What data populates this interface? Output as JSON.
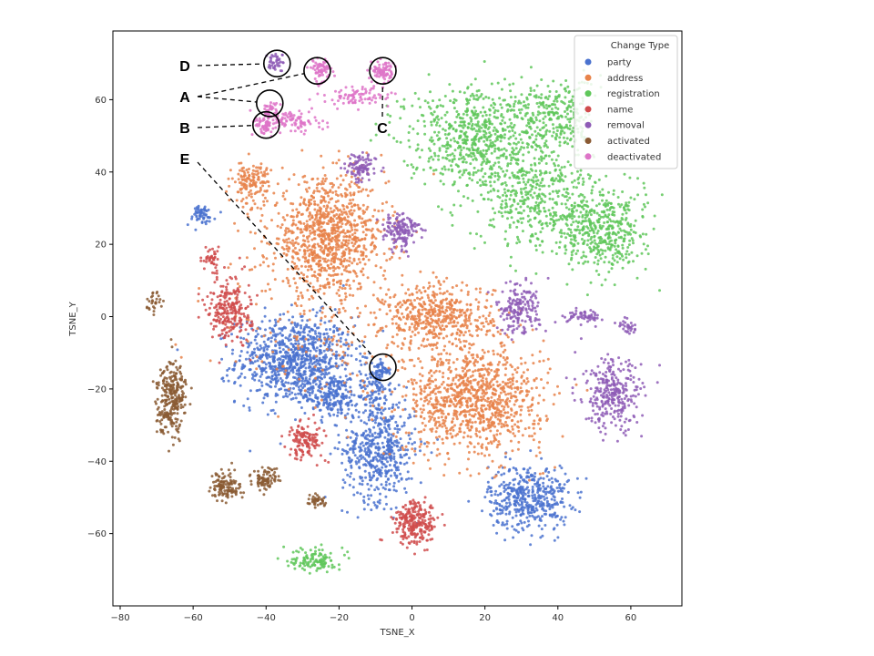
{
  "chart_data": {
    "type": "scatter",
    "title": "",
    "xlabel": "TSNE_X",
    "ylabel": "TSNE_Y",
    "xlim": [
      -82,
      74
    ],
    "ylim": [
      -80,
      79
    ],
    "xticks": [
      -80,
      -60,
      -40,
      -20,
      0,
      20,
      40,
      60
    ],
    "yticks": [
      -60,
      -40,
      -20,
      0,
      20,
      40,
      60
    ],
    "grid": false,
    "legend": {
      "title": "Change Type",
      "position": "top-right",
      "entries": [
        {
          "name": "party",
          "color": "#4a72cf"
        },
        {
          "name": "address",
          "color": "#e8834a"
        },
        {
          "name": "registration",
          "color": "#5fc75a"
        },
        {
          "name": "name",
          "color": "#d04c4c"
        },
        {
          "name": "removal",
          "color": "#8e5cb6"
        },
        {
          "name": "activated",
          "color": "#8a5a33"
        },
        {
          "name": "deactivated",
          "color": "#de74c8"
        }
      ]
    },
    "series": [
      {
        "name": "party",
        "color": "#4a72cf",
        "clusters": [
          {
            "cx": -32,
            "cy": -12,
            "rx": 16,
            "ry": 12,
            "n": 900
          },
          {
            "cx": -22,
            "cy": -22,
            "rx": 8,
            "ry": 6,
            "n": 200
          },
          {
            "cx": -9,
            "cy": -37,
            "rx": 10,
            "ry": 14,
            "n": 500
          },
          {
            "cx": 32,
            "cy": -50,
            "rx": 11,
            "ry": 9,
            "n": 450
          },
          {
            "cx": -58,
            "cy": 28,
            "rx": 4,
            "ry": 3,
            "n": 60
          },
          {
            "cx": -8,
            "cy": -15,
            "rx": 2.5,
            "ry": 2,
            "n": 35
          },
          {
            "cx": -10,
            "cy": -20,
            "rx": 5,
            "ry": 9,
            "n": 120
          }
        ]
      },
      {
        "name": "address",
        "color": "#e8834a",
        "clusters": [
          {
            "cx": -23,
            "cy": 22,
            "rx": 16,
            "ry": 16,
            "n": 1000
          },
          {
            "cx": -44,
            "cy": 37,
            "rx": 5,
            "ry": 6,
            "n": 140
          },
          {
            "cx": 7,
            "cy": 0,
            "rx": 15,
            "ry": 9,
            "n": 500
          },
          {
            "cx": 17,
            "cy": -23,
            "rx": 19,
            "ry": 15,
            "n": 1000
          },
          {
            "cx": -25,
            "cy": -5,
            "rx": 28,
            "ry": 24,
            "n": 150
          }
        ]
      },
      {
        "name": "registration",
        "color": "#5fc75a",
        "clusters": [
          {
            "cx": 18,
            "cy": 50,
            "rx": 20,
            "ry": 14,
            "n": 700
          },
          {
            "cx": 40,
            "cy": 55,
            "rx": 10,
            "ry": 11,
            "n": 250
          },
          {
            "cx": 35,
            "cy": 32,
            "rx": 18,
            "ry": 14,
            "n": 450
          },
          {
            "cx": 53,
            "cy": 23,
            "rx": 11,
            "ry": 11,
            "n": 400
          },
          {
            "cx": -27,
            "cy": -67,
            "rx": 6,
            "ry": 3.5,
            "n": 120
          }
        ]
      },
      {
        "name": "name",
        "color": "#d04c4c",
        "clusters": [
          {
            "cx": -50,
            "cy": 2,
            "rx": 6,
            "ry": 9,
            "n": 250
          },
          {
            "cx": -55,
            "cy": 16,
            "rx": 2.5,
            "ry": 3,
            "n": 40
          },
          {
            "cx": -29,
            "cy": -34,
            "rx": 5,
            "ry": 5,
            "n": 140
          },
          {
            "cx": 1,
            "cy": -57,
            "rx": 6,
            "ry": 6,
            "n": 250
          }
        ]
      },
      {
        "name": "removal",
        "color": "#8e5cb6",
        "clusters": [
          {
            "cx": -14,
            "cy": 41,
            "rx": 4,
            "ry": 4,
            "n": 100
          },
          {
            "cx": -3,
            "cy": 24,
            "rx": 5,
            "ry": 5,
            "n": 150
          },
          {
            "cx": 29,
            "cy": 2,
            "rx": 6,
            "ry": 7,
            "n": 180
          },
          {
            "cx": 55,
            "cy": -22,
            "rx": 8,
            "ry": 10,
            "n": 300
          },
          {
            "cx": 48,
            "cy": 0,
            "rx": 6,
            "ry": 1.6,
            "n": 60
          },
          {
            "cx": 59,
            "cy": -3,
            "rx": 3,
            "ry": 2,
            "n": 30
          },
          {
            "cx": -37,
            "cy": 70,
            "rx": 2.5,
            "ry": 2.5,
            "n": 40
          }
        ]
      },
      {
        "name": "activated",
        "color": "#8a5a33",
        "clusters": [
          {
            "cx": -66,
            "cy": -22,
            "rx": 4,
            "ry": 10,
            "n": 280
          },
          {
            "cx": -51,
            "cy": -47,
            "rx": 4,
            "ry": 4,
            "n": 120
          },
          {
            "cx": -40,
            "cy": -45,
            "rx": 4,
            "ry": 3,
            "n": 90
          },
          {
            "cx": -26,
            "cy": -51,
            "rx": 2.5,
            "ry": 2,
            "n": 40
          },
          {
            "cx": -71,
            "cy": 4,
            "rx": 2,
            "ry": 3,
            "n": 30
          }
        ]
      },
      {
        "name": "deactivated",
        "color": "#de74c8",
        "clusters": [
          {
            "cx": -25,
            "cy": 68,
            "rx": 3,
            "ry": 3,
            "n": 70
          },
          {
            "cx": -8,
            "cy": 68,
            "rx": 3,
            "ry": 3,
            "n": 80
          },
          {
            "cx": -14,
            "cy": 61,
            "rx": 9,
            "ry": 3,
            "n": 90
          },
          {
            "cx": -33,
            "cy": 54,
            "rx": 8,
            "ry": 3,
            "n": 100
          },
          {
            "cx": -40,
            "cy": 53,
            "rx": 3,
            "ry": 3,
            "n": 60
          },
          {
            "cx": -39,
            "cy": 58,
            "rx": 2,
            "ry": 2,
            "n": 30
          }
        ]
      }
    ],
    "annotations": [
      {
        "letter": "D",
        "targets": [
          [
            -37,
            70
          ]
        ]
      },
      {
        "letter": "A",
        "targets": [
          [
            -26,
            68
          ],
          [
            -39,
            59
          ]
        ]
      },
      {
        "letter": "B",
        "targets": [
          [
            -40,
            53
          ]
        ]
      },
      {
        "letter": "C",
        "targets": [
          [
            -8,
            68
          ]
        ]
      },
      {
        "letter": "E",
        "targets": [
          [
            -8,
            -14
          ]
        ]
      }
    ]
  }
}
